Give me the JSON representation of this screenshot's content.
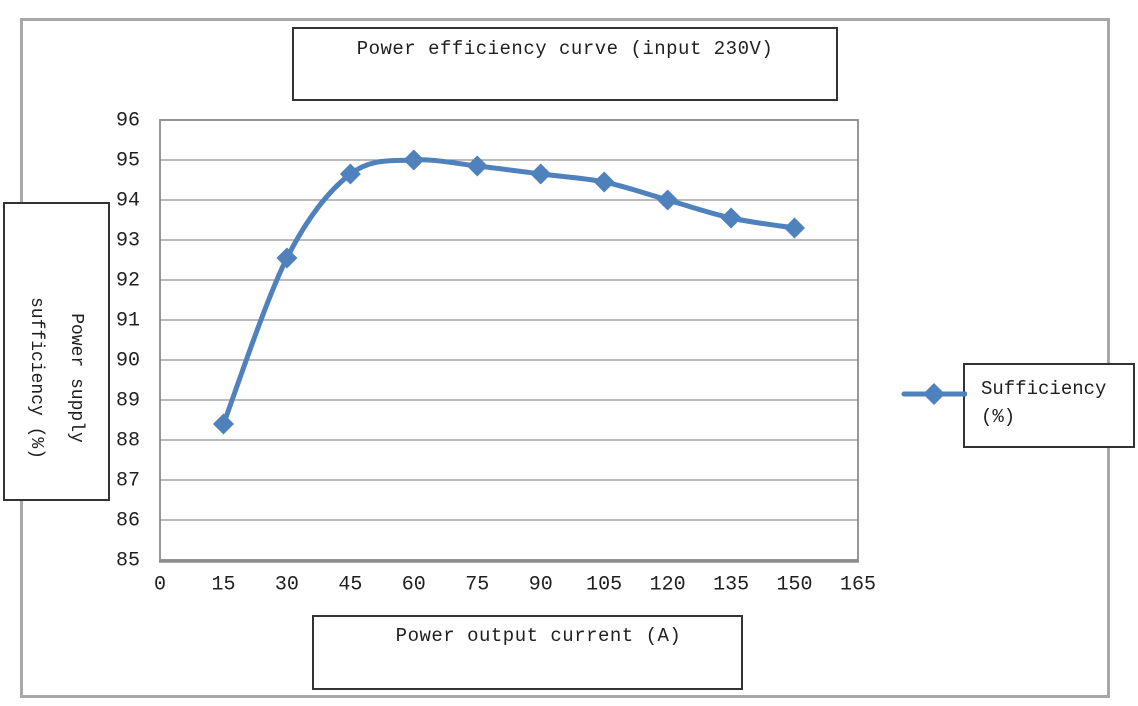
{
  "chart_data": {
    "type": "line",
    "title": "Power efficiency curve (input 230V)",
    "xlabel": "Power output current (A)",
    "ylabel": "Power supply sufficiency (%)",
    "ylabel_lines": [
      "Power supply",
      "sufficiency (%)"
    ],
    "legend_lines": [
      "Sufficiency",
      "(%)"
    ],
    "legend_position": "right",
    "series": [
      {
        "name": "Sufficiency (%)",
        "x": [
          15,
          30,
          45,
          60,
          75,
          90,
          105,
          120,
          135,
          150
        ],
        "values": [
          88.4,
          92.55,
          94.65,
          95.0,
          94.85,
          94.65,
          94.45,
          94.0,
          93.55,
          93.3
        ]
      }
    ],
    "x_ticks": [
      0,
      15,
      30,
      45,
      60,
      75,
      90,
      105,
      120,
      135,
      150,
      165
    ],
    "y_ticks": [
      85,
      86,
      87,
      88,
      89,
      90,
      91,
      92,
      93,
      94,
      95,
      96
    ],
    "xlim": [
      0,
      165
    ],
    "ylim": [
      85,
      96
    ],
    "grid": "horizontal",
    "smooth": true,
    "marker": "diamond",
    "colors": {
      "line": "#4F81BD",
      "grid": "#929292",
      "plot_border": "#8c8c8c",
      "chart_border": "#a8a8a8",
      "box_border": "#333333",
      "text": "#1f1f1f",
      "background": "#ffffff"
    }
  }
}
